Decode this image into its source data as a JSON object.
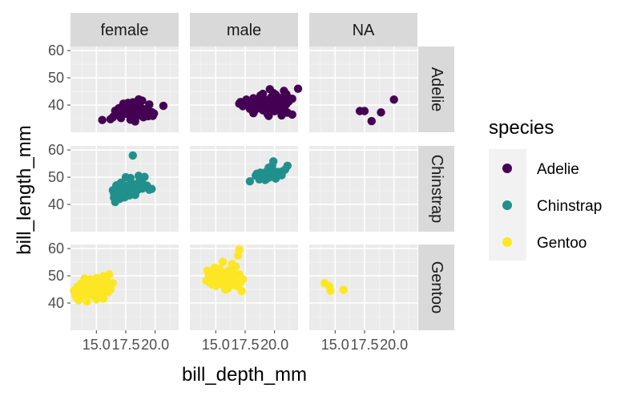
{
  "chart_data": {
    "type": "scatter",
    "xlabel": "bill_depth_mm",
    "ylabel": "bill_length_mm",
    "col_facets": [
      "female",
      "male",
      "NA"
    ],
    "row_facets": [
      "Adelie",
      "Chinstrap",
      "Gentoo"
    ],
    "xlim": [
      12.8,
      22.0
    ],
    "ylim": [
      30.0,
      61.5
    ],
    "x_ticks": [
      15.0,
      17.5,
      20.0
    ],
    "x_tick_labels": [
      "15.0",
      "17.5",
      "20.0"
    ],
    "y_ticks": [
      40,
      50,
      60
    ],
    "y_tick_labels": [
      "40",
      "50",
      "60"
    ],
    "grid": true,
    "legend": {
      "title": "species",
      "placement": "right",
      "entries": [
        {
          "label": "Adelie",
          "color": "#440154"
        },
        {
          "label": "Chinstrap",
          "color": "#21908C"
        },
        {
          "label": "Gentoo",
          "color": "#FDE725"
        }
      ]
    },
    "panels": [
      {
        "col": "female",
        "row": "Adelie",
        "series": "Adelie",
        "points": [
          [
            15.5,
            34.5
          ],
          [
            16.2,
            34.8
          ],
          [
            16.5,
            36.0
          ],
          [
            16.7,
            37.2
          ],
          [
            17.0,
            36.5
          ],
          [
            17.1,
            35.2
          ],
          [
            16.9,
            38.8
          ],
          [
            17.2,
            39.5
          ],
          [
            17.4,
            38.1
          ],
          [
            17.6,
            36.8
          ],
          [
            17.8,
            37.8
          ],
          [
            17.9,
            36.0
          ],
          [
            17.5,
            39.8
          ],
          [
            17.3,
            40.5
          ],
          [
            17.7,
            40.8
          ],
          [
            17.8,
            39.2
          ],
          [
            18.0,
            38.4
          ],
          [
            18.1,
            37.0
          ],
          [
            18.2,
            36.4
          ],
          [
            18.3,
            39.0
          ],
          [
            18.4,
            38.2
          ],
          [
            18.4,
            35.8
          ],
          [
            18.5,
            37.6
          ],
          [
            18.6,
            36.2
          ],
          [
            18.7,
            39.3
          ],
          [
            18.8,
            38.9
          ],
          [
            18.9,
            36.7
          ],
          [
            19.0,
            35.5
          ],
          [
            18.1,
            41.0
          ],
          [
            18.3,
            40.2
          ],
          [
            18.6,
            42.1
          ],
          [
            18.9,
            41.6
          ],
          [
            19.1,
            37.9
          ],
          [
            19.2,
            36.1
          ],
          [
            19.3,
            38.3
          ],
          [
            19.4,
            35.9
          ],
          [
            19.5,
            37.2
          ],
          [
            19.6,
            36.6
          ],
          [
            19.7,
            37.4
          ],
          [
            19.5,
            40.2
          ],
          [
            19.8,
            36.0
          ],
          [
            19.9,
            36.9
          ],
          [
            17.0,
            37.6
          ],
          [
            16.6,
            37.9
          ],
          [
            16.4,
            35.5
          ],
          [
            17.9,
            34.6
          ],
          [
            18.3,
            34.0
          ],
          [
            19.0,
            38.5
          ],
          [
            18.5,
            40.6
          ],
          [
            20.7,
            39.7
          ]
        ]
      },
      {
        "col": "male",
        "row": "Adelie",
        "series": "Adelie",
        "points": [
          [
            17.0,
            40.5
          ],
          [
            17.1,
            41.1
          ],
          [
            17.3,
            39.6
          ],
          [
            17.6,
            42.0
          ],
          [
            17.8,
            40.7
          ],
          [
            17.9,
            38.6
          ],
          [
            18.0,
            41.1
          ],
          [
            18.1,
            39.2
          ],
          [
            18.2,
            42.5
          ],
          [
            18.3,
            37.9
          ],
          [
            18.4,
            40.3
          ],
          [
            18.5,
            38.8
          ],
          [
            18.6,
            41.4
          ],
          [
            18.7,
            39.5
          ],
          [
            18.8,
            43.2
          ],
          [
            18.9,
            40.8
          ],
          [
            19.0,
            38.1
          ],
          [
            19.1,
            42.2
          ],
          [
            19.2,
            39.8
          ],
          [
            19.3,
            37.6
          ],
          [
            19.4,
            41.6
          ],
          [
            19.5,
            40.1
          ],
          [
            19.6,
            38.4
          ],
          [
            19.7,
            42.8
          ],
          [
            19.8,
            39.3
          ],
          [
            19.9,
            41.0
          ],
          [
            20.0,
            37.7
          ],
          [
            20.1,
            40.6
          ],
          [
            20.2,
            38.9
          ],
          [
            20.3,
            42.0
          ],
          [
            20.4,
            39.0
          ],
          [
            20.5,
            40.9
          ],
          [
            20.6,
            37.8
          ],
          [
            20.7,
            41.3
          ],
          [
            20.8,
            39.7
          ],
          [
            20.9,
            38.0
          ],
          [
            21.0,
            40.3
          ],
          [
            21.1,
            37.2
          ],
          [
            21.2,
            41.3
          ],
          [
            21.5,
            42.3
          ],
          [
            19.0,
            44.1
          ],
          [
            18.8,
            43.5
          ],
          [
            19.6,
            45.8
          ],
          [
            20.1,
            43.8
          ],
          [
            21.0,
            44.0
          ],
          [
            19.4,
            36.7
          ],
          [
            20.6,
            36.2
          ],
          [
            18.2,
            37.0
          ],
          [
            22.0,
            46.0
          ],
          [
            21.5,
            36.5
          ],
          [
            19.5,
            36.0
          ],
          [
            19.9,
            44.4
          ],
          [
            21.1,
            42.9
          ],
          [
            20.0,
            41.4
          ],
          [
            18.6,
            39.0
          ],
          [
            19.2,
            40.5
          ],
          [
            20.5,
            42.6
          ],
          [
            20.8,
            45.2
          ]
        ]
      },
      {
        "col": "NA",
        "row": "Adelie",
        "series": "Adelie",
        "points": [
          [
            17.1,
            37.8
          ],
          [
            17.5,
            37.8
          ],
          [
            18.1,
            34.1
          ],
          [
            18.9,
            37.3
          ],
          [
            20.0,
            42.0
          ]
        ]
      },
      {
        "col": "female",
        "row": "Chinstrap",
        "series": "Chinstrap",
        "points": [
          [
            16.4,
            45.2
          ],
          [
            16.5,
            42.5
          ],
          [
            16.6,
            40.9
          ],
          [
            16.7,
            47.0
          ],
          [
            16.8,
            43.2
          ],
          [
            16.9,
            45.5
          ],
          [
            17.0,
            42.1
          ],
          [
            17.1,
            48.0
          ],
          [
            17.2,
            46.4
          ],
          [
            17.3,
            44.3
          ],
          [
            17.4,
            42.6
          ],
          [
            17.5,
            46.9
          ],
          [
            17.6,
            45.6
          ],
          [
            17.7,
            43.7
          ],
          [
            17.8,
            46.1
          ],
          [
            17.9,
            47.6
          ],
          [
            18.0,
            45.1
          ],
          [
            18.1,
            46.8
          ],
          [
            18.2,
            44.9
          ],
          [
            18.3,
            47.4
          ],
          [
            18.4,
            46.2
          ],
          [
            18.5,
            45.3
          ],
          [
            18.6,
            50.5
          ],
          [
            18.7,
            49.2
          ],
          [
            18.8,
            46.5
          ],
          [
            18.9,
            45.8
          ],
          [
            19.0,
            47.3
          ],
          [
            19.1,
            50.1
          ],
          [
            19.3,
            46.9
          ],
          [
            19.5,
            45.4
          ],
          [
            17.9,
            49.7
          ],
          [
            17.5,
            50.0
          ],
          [
            18.1,
            58.0
          ],
          [
            19.7,
            45.7
          ],
          [
            18.3,
            43.5
          ],
          [
            17.0,
            47.5
          ],
          [
            16.5,
            44.0
          ],
          [
            17.8,
            43.3
          ]
        ]
      },
      {
        "col": "male",
        "row": "Chinstrap",
        "series": "Chinstrap",
        "points": [
          [
            17.9,
            48.5
          ],
          [
            18.4,
            50.6
          ],
          [
            18.5,
            51.3
          ],
          [
            18.7,
            49.2
          ],
          [
            18.8,
            51.7
          ],
          [
            19.0,
            50.9
          ],
          [
            19.2,
            49.0
          ],
          [
            19.3,
            52.0
          ],
          [
            19.4,
            50.5
          ],
          [
            19.5,
            51.5
          ],
          [
            19.6,
            52.7
          ],
          [
            19.7,
            50.1
          ],
          [
            19.8,
            51.4
          ],
          [
            19.9,
            52.3
          ],
          [
            20.0,
            50.4
          ],
          [
            20.1,
            49.5
          ],
          [
            19.5,
            53.5
          ],
          [
            19.8,
            54.2
          ],
          [
            19.9,
            55.8
          ],
          [
            20.3,
            51.9
          ],
          [
            20.7,
            52.2
          ],
          [
            21.1,
            54.2
          ],
          [
            20.6,
            50.7
          ],
          [
            20.9,
            52.8
          ],
          [
            19.1,
            50.2
          ],
          [
            19.4,
            49.6
          ]
        ]
      },
      {
        "col": "female",
        "row": "Gentoo",
        "series": "Gentoo",
        "points": [
          [
            13.1,
            44.5
          ],
          [
            13.2,
            43.2
          ],
          [
            13.3,
            42.0
          ],
          [
            13.4,
            46.0
          ],
          [
            13.5,
            44.9
          ],
          [
            13.6,
            43.6
          ],
          [
            13.7,
            47.2
          ],
          [
            13.8,
            45.3
          ],
          [
            13.9,
            42.8
          ],
          [
            14.0,
            46.4
          ],
          [
            14.1,
            44.0
          ],
          [
            14.2,
            47.8
          ],
          [
            14.3,
            45.1
          ],
          [
            14.4,
            43.2
          ],
          [
            14.5,
            48.7
          ],
          [
            14.6,
            46.5
          ],
          [
            14.7,
            44.4
          ],
          [
            14.8,
            42.5
          ],
          [
            14.9,
            45.7
          ],
          [
            15.0,
            49.2
          ],
          [
            15.1,
            46.8
          ],
          [
            15.2,
            44.9
          ],
          [
            15.3,
            43.5
          ],
          [
            15.4,
            47.5
          ],
          [
            15.5,
            45.2
          ],
          [
            15.6,
            49.9
          ],
          [
            15.7,
            46.2
          ],
          [
            15.8,
            44.2
          ],
          [
            15.9,
            48.1
          ],
          [
            16.0,
            46.6
          ],
          [
            16.1,
            50.5
          ],
          [
            16.2,
            45.0
          ],
          [
            16.4,
            47.3
          ],
          [
            13.5,
            41.0
          ],
          [
            14.2,
            40.6
          ],
          [
            15.0,
            41.3
          ],
          [
            15.6,
            41.6
          ],
          [
            14.8,
            48.4
          ],
          [
            15.3,
            47.9
          ],
          [
            14.0,
            49.0
          ],
          [
            16.0,
            44.0
          ],
          [
            13.7,
            44.8
          ]
        ]
      },
      {
        "col": "male",
        "row": "Gentoo",
        "series": "Gentoo",
        "points": [
          [
            14.2,
            48.2
          ],
          [
            14.4,
            50.5
          ],
          [
            14.5,
            47.5
          ],
          [
            14.6,
            49.8
          ],
          [
            14.7,
            46.8
          ],
          [
            14.8,
            51.3
          ],
          [
            14.9,
            48.5
          ],
          [
            15.0,
            46.3
          ],
          [
            15.1,
            50.0
          ],
          [
            15.2,
            47.8
          ],
          [
            15.3,
            52.5
          ],
          [
            15.4,
            49.0
          ],
          [
            15.5,
            46.9
          ],
          [
            15.6,
            51.1
          ],
          [
            15.7,
            48.6
          ],
          [
            15.8,
            45.5
          ],
          [
            15.9,
            50.2
          ],
          [
            16.0,
            47.3
          ],
          [
            16.1,
            52.0
          ],
          [
            16.2,
            49.5
          ],
          [
            16.3,
            46.5
          ],
          [
            16.4,
            54.3
          ],
          [
            16.5,
            50.8
          ],
          [
            16.6,
            48.1
          ],
          [
            16.7,
            53.4
          ],
          [
            16.8,
            46.2
          ],
          [
            17.0,
            50.5
          ],
          [
            17.1,
            47.5
          ],
          [
            17.3,
            48.8
          ],
          [
            15.6,
            55.1
          ],
          [
            16.0,
            45.2
          ],
          [
            16.3,
            51.5
          ],
          [
            14.9,
            53.0
          ],
          [
            15.8,
            45.0
          ],
          [
            17.0,
            59.6
          ],
          [
            16.9,
            57.5
          ],
          [
            17.2,
            44.4
          ],
          [
            14.3,
            51.9
          ]
        ]
      },
      {
        "col": "NA",
        "row": "Gentoo",
        "series": "Gentoo",
        "points": [
          [
            14.1,
            47.3
          ],
          [
            14.5,
            46.2
          ],
          [
            14.6,
            44.5
          ],
          [
            15.7,
            44.9
          ]
        ]
      }
    ]
  }
}
